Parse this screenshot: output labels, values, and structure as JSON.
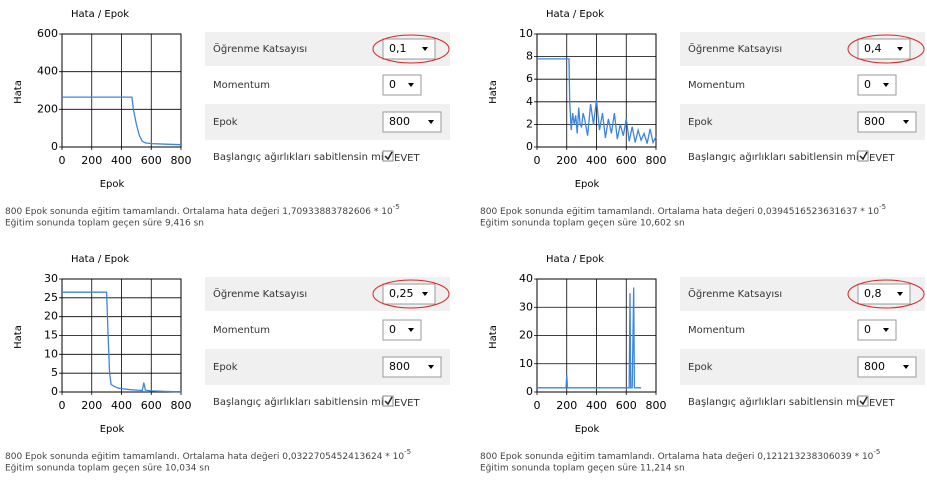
{
  "chart_data": [
    {
      "type": "line",
      "title": "Hata / Epok",
      "x_label": "Epok",
      "y_label": "Hata",
      "color": "#3d85e0",
      "grid": true,
      "xlim": [
        0,
        800
      ],
      "xticks": [
        0,
        200,
        400,
        600,
        800
      ],
      "ylim": [
        0,
        600
      ],
      "yticks": [
        0,
        200,
        400,
        600
      ],
      "x": [
        0,
        470,
        480,
        500,
        520,
        540,
        560,
        600,
        700,
        800
      ],
      "values": [
        265,
        265,
        200,
        120,
        60,
        30,
        22,
        18,
        15,
        12
      ]
    },
    {
      "type": "line",
      "title": "Hata / Epok",
      "x_label": "Epok",
      "y_label": "Hata",
      "color": "#3d85e0",
      "grid": true,
      "xlim": [
        0,
        800
      ],
      "xticks": [
        0,
        200,
        400,
        600,
        800
      ],
      "ylim": [
        0,
        10
      ],
      "yticks": [
        0,
        2,
        4,
        6,
        8,
        10
      ],
      "x": [
        0,
        215,
        220,
        230,
        240,
        250,
        260,
        270,
        280,
        290,
        300,
        310,
        320,
        340,
        360,
        380,
        400,
        420,
        440,
        460,
        480,
        500,
        520,
        540,
        560,
        580,
        600,
        620,
        640,
        660,
        680,
        700,
        720,
        740,
        760,
        780,
        800
      ],
      "values": [
        7.8,
        7.8,
        4,
        1.5,
        3,
        2,
        2.8,
        1.2,
        3.5,
        2,
        1.8,
        3,
        2.5,
        1,
        3.8,
        2,
        4.2,
        1.5,
        3,
        0.8,
        2.5,
        1.2,
        3,
        0.7,
        2,
        1,
        2.5,
        0.5,
        1.8,
        0.4,
        1.5,
        0.6,
        1.2,
        0.3,
        1.6,
        0.4,
        0.9
      ]
    },
    {
      "type": "line",
      "title": "Hata / Epok",
      "x_label": "Epok",
      "y_label": "Hata",
      "color": "#3d85e0",
      "grid": true,
      "xlim": [
        0,
        800
      ],
      "xticks": [
        0,
        200,
        400,
        600,
        800
      ],
      "ylim": [
        0,
        30
      ],
      "yticks": [
        0,
        5,
        10,
        15,
        20,
        25,
        30
      ],
      "x": [
        0,
        300,
        310,
        320,
        330,
        350,
        380,
        420,
        460,
        500,
        540,
        550,
        560,
        600,
        650,
        700,
        750,
        800
      ],
      "values": [
        26.5,
        26.5,
        15,
        5,
        2,
        1.5,
        1,
        0.8,
        0.6,
        0.5,
        0.4,
        2.5,
        0.5,
        0.3,
        0.2,
        0.15,
        0.1,
        0.1
      ]
    },
    {
      "type": "line",
      "title": "Hata / Epok",
      "x_label": "Epok",
      "y_label": "Hata",
      "color": "#3d85e0",
      "grid": true,
      "xlim": [
        0,
        800
      ],
      "xticks": [
        0,
        200,
        400,
        600,
        800
      ],
      "ylim": [
        0,
        40
      ],
      "yticks": [
        0,
        10,
        20,
        30,
        40
      ],
      "x": [
        0,
        195,
        200,
        205,
        600,
        620,
        625,
        630,
        640,
        650,
        655,
        700
      ],
      "values": [
        1.5,
        1.5,
        6,
        1.5,
        1.5,
        1.5,
        35,
        1.5,
        1.5,
        37,
        1.5,
        1.5
      ]
    }
  ],
  "panels": [
    {
      "learning_rate_label": "Öğrenme Katsayısı",
      "learning_rate": "0,1",
      "momentum_label": "Momentum",
      "momentum": "0",
      "epoch_label": "Epok",
      "epoch": "800",
      "fixed_weights_label": "Başlangıç ağırlıkları sabitlensin mi ?",
      "fixed_weights": "EVET",
      "result": "800 Epok sonunda eğitim tamamlandı. Ortalama hata değeri 1,70933883782606 * 10",
      "result_exponent": "-5",
      "time": "Eğitim sonunda toplam geçen süre 9,416 sn"
    },
    {
      "learning_rate_label": "Öğrenme Katsayısı",
      "learning_rate": "0,4",
      "momentum_label": "Momentum",
      "momentum": "0",
      "epoch_label": "Epok",
      "epoch": "800",
      "fixed_weights_label": "Başlangıç ağırlıkları sabitlensin mi ?",
      "fixed_weights": "EVET",
      "result": "800 Epok sonunda eğitim tamamlandı. Ortalama hata değeri 0,0394516523631637 * 10",
      "result_exponent": "-5",
      "time": "Eğitim sonunda toplam geçen süre 10,602 sn"
    },
    {
      "learning_rate_label": "Öğrenme Katsayısı",
      "learning_rate": "0,25",
      "momentum_label": "Momentum",
      "momentum": "0",
      "epoch_label": "Epok",
      "epoch": "800",
      "fixed_weights_label": "Başlangıç ağırlıkları sabitlensin mi ?",
      "fixed_weights": "EVET",
      "result": "800 Epok sonunda eğitim tamamlandı. Ortalama hata değeri 0,0322705452413624 * 10",
      "result_exponent": "-5",
      "time": "Eğitim sonunda toplam geçen süre 10,034 sn"
    },
    {
      "learning_rate_label": "Öğrenme Katsayısı",
      "learning_rate": "0,8",
      "momentum_label": "Momentum",
      "momentum": "0",
      "epoch_label": "Epok",
      "epoch": "800",
      "fixed_weights_label": "Başlangıç ağırlıkları sabitlensin mi ?",
      "fixed_weights": "EVET",
      "result": "800 Epok sonunda eğitim tamamlandı. Ortalama hata değeri 0,121213238306039 * 10",
      "result_exponent": "-5",
      "time": "Eğitim sonunda toplam geçen süre 11,214 sn"
    }
  ]
}
